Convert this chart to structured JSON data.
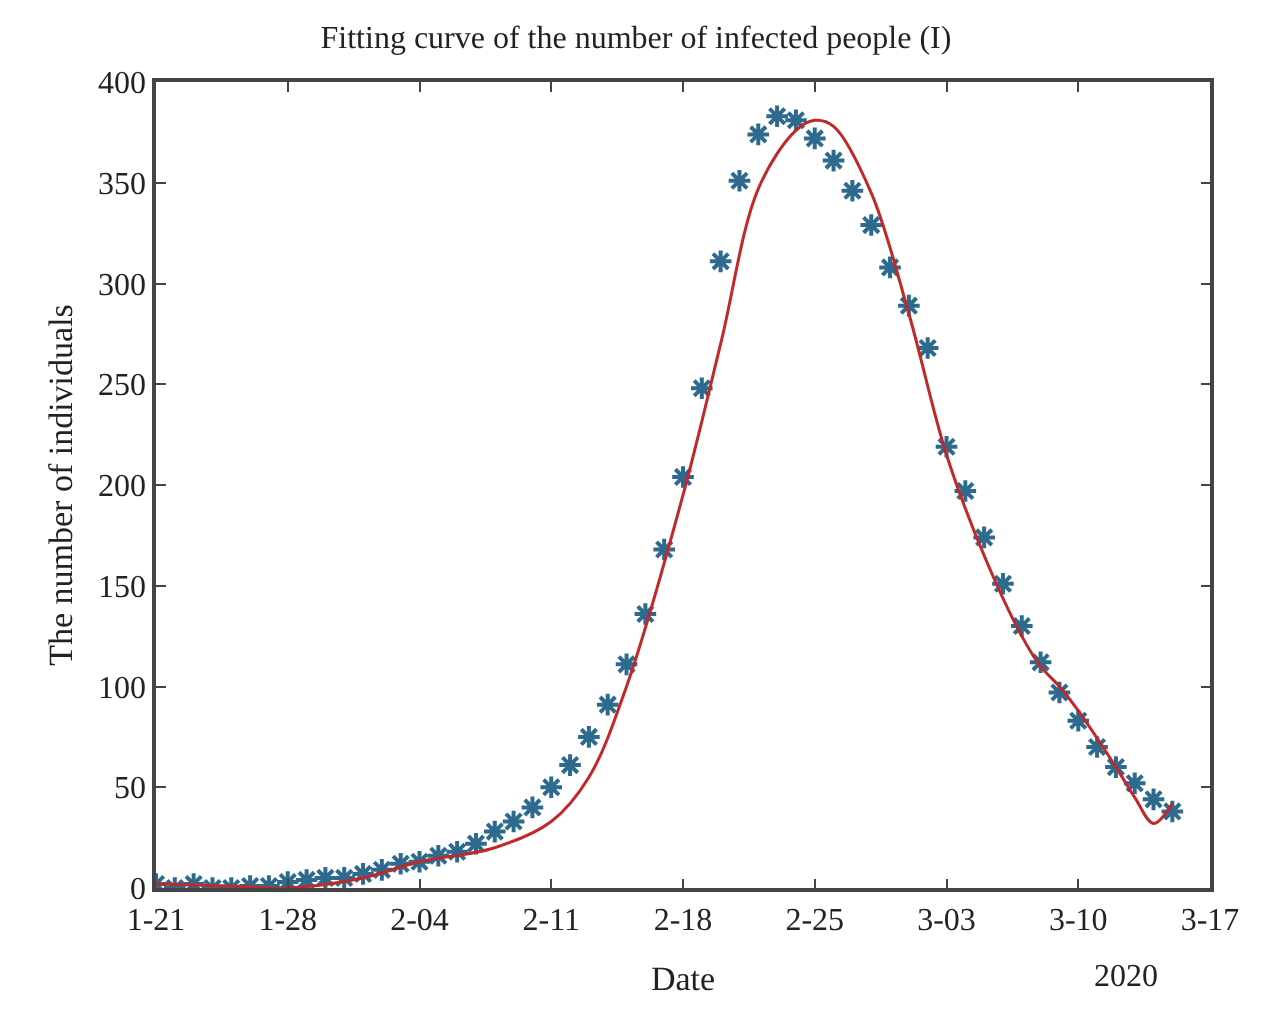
{
  "chart_data": {
    "type": "scatter",
    "title": "Fitting curve of the number of infected people (I)",
    "xlabel": "Date",
    "ylabel": "The number of individuals",
    "annotations": [
      "2020"
    ],
    "series": [
      {
        "type": "scatter",
        "color": "#2e6a8e",
        "marker": "cross",
        "x": [
          "2020-01-21",
          "2020-01-22",
          "2020-01-23",
          "2020-01-24",
          "2020-01-25",
          "2020-01-26",
          "2020-01-27",
          "2020-01-28",
          "2020-01-29",
          "2020-01-30",
          "2020-01-31",
          "2020-02-01",
          "2020-02-02",
          "2020-02-03",
          "2020-02-04",
          "2020-02-05",
          "2020-02-06",
          "2020-02-07",
          "2020-02-08",
          "2020-02-09",
          "2020-02-10",
          "2020-02-11",
          "2020-02-12",
          "2020-02-13",
          "2020-02-14",
          "2020-02-15",
          "2020-02-16",
          "2020-02-17",
          "2020-02-18",
          "2020-02-19",
          "2020-02-20",
          "2020-02-21",
          "2020-02-22",
          "2020-02-23",
          "2020-02-24",
          "2020-02-25",
          "2020-02-26",
          "2020-02-27",
          "2020-02-28",
          "2020-02-29",
          "2020-03-01",
          "2020-03-02",
          "2020-03-03",
          "2020-03-04",
          "2020-03-05",
          "2020-03-06",
          "2020-03-07",
          "2020-03-08",
          "2020-03-09",
          "2020-03-10",
          "2020-03-11",
          "2020-03-12",
          "2020-03-13",
          "2020-03-14",
          "2020-03-15"
        ],
        "values": [
          2,
          0,
          2,
          0,
          0,
          1,
          1,
          3,
          4,
          5,
          5,
          7,
          9,
          12,
          13,
          16,
          18,
          22,
          28,
          33,
          40,
          50,
          61,
          75,
          91,
          111,
          136,
          168,
          204,
          248,
          311,
          351,
          374,
          383,
          381,
          372,
          361,
          346,
          329,
          308,
          289,
          268,
          219,
          197,
          174,
          151,
          130,
          112,
          97,
          83,
          70,
          60,
          52,
          44,
          38
        ]
      },
      {
        "type": "line",
        "color": "#c0282a",
        "line_style": "solid",
        "x": [
          "2020-01-21",
          "2020-01-25",
          "2020-01-28",
          "2020-02-01",
          "2020-02-04",
          "2020-02-08",
          "2020-02-11",
          "2020-02-13",
          "2020-02-15",
          "2020-02-18",
          "2020-02-20",
          "2020-02-22",
          "2020-02-24",
          "2020-02-25",
          "2020-02-26",
          "2020-02-28",
          "2020-03-01",
          "2020-03-03",
          "2020-03-05",
          "2020-03-07",
          "2020-03-08",
          "2020-03-09",
          "2020-03-10",
          "2020-03-12",
          "2020-03-13",
          "2020-03-14",
          "2020-03-15"
        ],
        "values": [
          2,
          1,
          0,
          5,
          13,
          20,
          33,
          55,
          100,
          195,
          270,
          347,
          376,
          381,
          378,
          345,
          285,
          215,
          165,
          125,
          110,
          100,
          88,
          60,
          45,
          32,
          42
        ]
      }
    ],
    "xlim": [
      "2020-01-21",
      "2020-03-17"
    ],
    "xticks": [
      {
        "value": "2020-01-21",
        "label": "1-21"
      },
      {
        "value": "2020-01-28",
        "label": "1-28"
      },
      {
        "value": "2020-02-04",
        "label": "2-04"
      },
      {
        "value": "2020-02-11",
        "label": "2-11"
      },
      {
        "value": "2020-02-18",
        "label": "2-18"
      },
      {
        "value": "2020-02-25",
        "label": "2-25"
      },
      {
        "value": "2020-03-03",
        "label": "3-03"
      },
      {
        "value": "2020-03-10",
        "label": "3-10"
      },
      {
        "value": "2020-03-17",
        "label": "3-17"
      }
    ],
    "ylim": [
      0,
      400
    ],
    "yticks": [
      0,
      50,
      100,
      150,
      200,
      250,
      300,
      350,
      400
    ]
  }
}
